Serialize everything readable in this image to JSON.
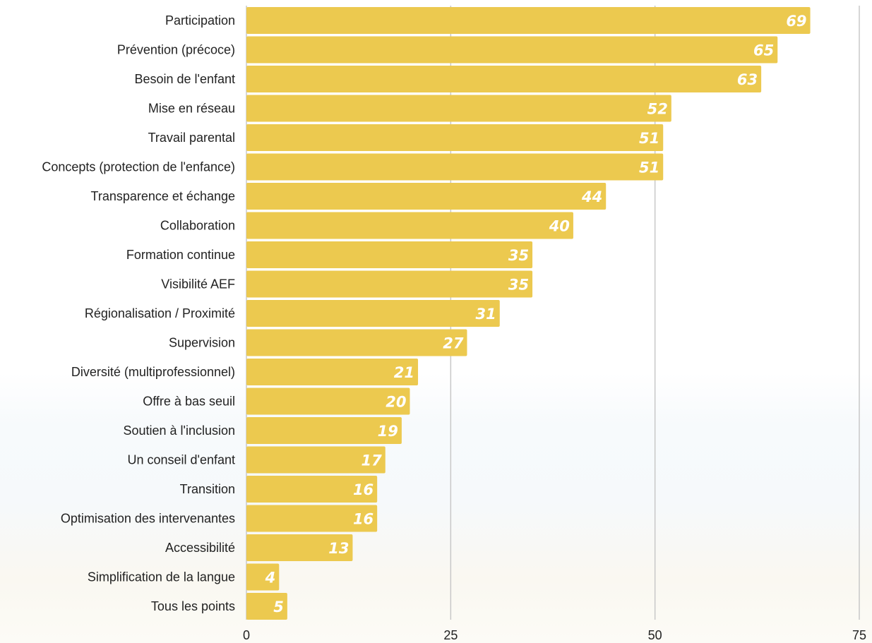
{
  "chart_data": {
    "type": "bar",
    "orientation": "horizontal",
    "title": "",
    "xlabel": "",
    "ylabel": "",
    "categories": [
      "Participation",
      "Prévention (précoce)",
      "Besoin de l'enfant",
      "Mise en réseau",
      "Travail parental",
      "Concepts (protection de l'enfance)",
      "Transparence et échange",
      "Collaboration",
      "Formation continue",
      "Visibilité AEF",
      "Régionalisation / Proximité",
      "Supervision",
      "Diversité (multiprofessionnel)",
      "Offre à bas seuil",
      "Soutien à l'inclusion",
      "Un conseil d'enfant",
      "Transition",
      "Optimisation des intervenantes",
      "Accessibilité",
      "Simplification de la langue",
      "Tous les points"
    ],
    "values": [
      69,
      65,
      63,
      52,
      51,
      51,
      44,
      40,
      35,
      35,
      31,
      27,
      21,
      20,
      19,
      17,
      16,
      16,
      13,
      4,
      5
    ],
    "xlim": [
      0,
      75
    ],
    "xticks": [
      0,
      25,
      50,
      75
    ],
    "grid": true,
    "bar_color": "#ecc94f",
    "value_label_color": "#ffffff",
    "grid_color": "#c8c8c8"
  }
}
